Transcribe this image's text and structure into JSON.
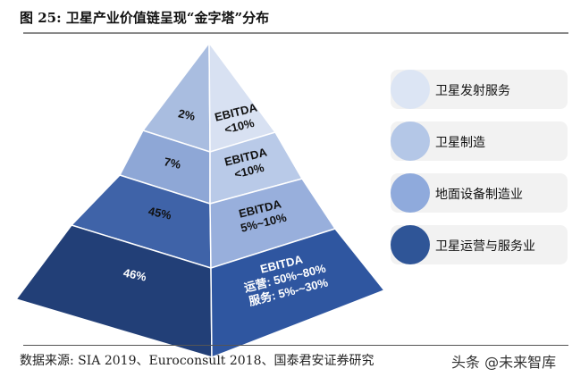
{
  "title": "图 25: 卫星产业价值链呈现“金字塔”分布",
  "source": "数据来源: SIA 2019、Euroconsult 2018、国泰君安证券研究",
  "watermark": "头条 @未来智库",
  "layers": [
    {
      "share": "2%",
      "ebitda": [
        "EBITDA",
        "<10%"
      ],
      "left_color": "#a9bde0",
      "right_color": "#d8e1f2"
    },
    {
      "share": "7%",
      "ebitda": [
        "EBITDA",
        "<10%"
      ],
      "left_color": "#8ea7d6",
      "right_color": "#b9cae8"
    },
    {
      "share": "45%",
      "ebitda": [
        "EBITDA",
        "5%~10%"
      ],
      "left_color": "#3f63a8",
      "right_color": "#98afdc"
    },
    {
      "share": "46%",
      "ebitda": [
        "EBITDA",
        "运营: 50%~80%",
        "服务: 5%-~30%"
      ],
      "left_color": "#223f77",
      "right_color": "#2f56a0"
    }
  ],
  "legend": [
    {
      "label": "卫星发射服务",
      "color": "#dce5f4"
    },
    {
      "label": "卫星制造",
      "color": "#b4c7e7"
    },
    {
      "label": "地面设备制造业",
      "color": "#8faadc"
    },
    {
      "label": "卫星运营与服务业",
      "color": "#2f5597"
    }
  ]
}
